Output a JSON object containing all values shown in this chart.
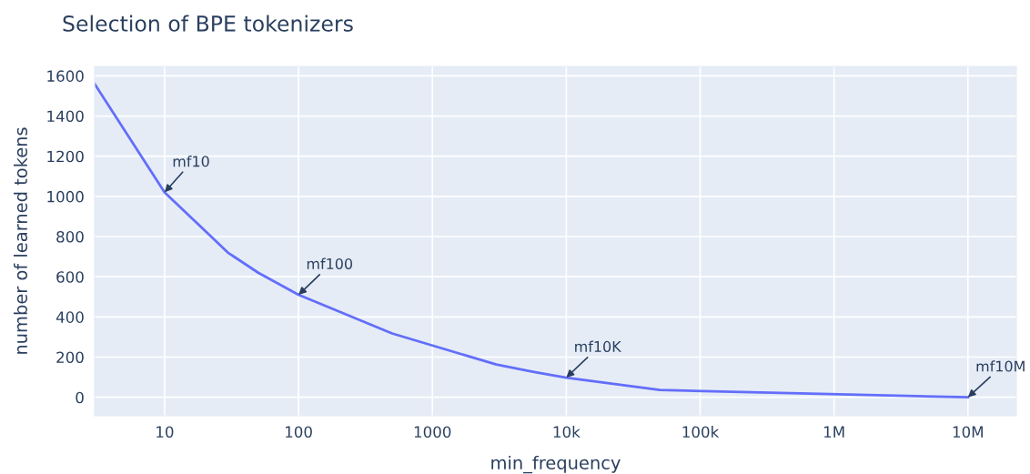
{
  "chart_data": {
    "type": "line",
    "title": "Selection of BPE tokenizers",
    "xlabel": "min_frequency",
    "ylabel": "number of learned tokens",
    "x": [
      3,
      10,
      30,
      50,
      100,
      500,
      3000,
      5000,
      6000,
      10000,
      50000,
      10000000
    ],
    "series": [
      {
        "color": "#636efa",
        "values": [
          1560,
          1020,
          718,
          620,
          510,
          318,
          163,
          134,
          124,
          98,
          36,
          0
        ]
      }
    ],
    "log": "x",
    "xlim": [
      3,
      23000000
    ],
    "ylim": [
      -92,
      1647
    ],
    "xticks": [
      10,
      100,
      1000,
      {
        "value": 10000,
        "label": "10k"
      },
      {
        "value": 100000,
        "label": "100k"
      },
      {
        "value": 1000000,
        "label": "1M"
      },
      {
        "value": 10000000,
        "label": "10M"
      }
    ],
    "yticks": [
      0,
      200,
      400,
      600,
      800,
      1000,
      1200,
      1400,
      1600
    ],
    "grid": true,
    "marker": "none",
    "line_style": "solid",
    "annotations": [
      {
        "text": "mf10",
        "x": 10,
        "y": 1020
      },
      {
        "text": "mf100",
        "x": 100,
        "y": 510
      },
      {
        "text": "mf10K",
        "x": 10000,
        "y": 98
      },
      {
        "text": "mf10M",
        "x": 10000000,
        "y": 0
      }
    ]
  }
}
